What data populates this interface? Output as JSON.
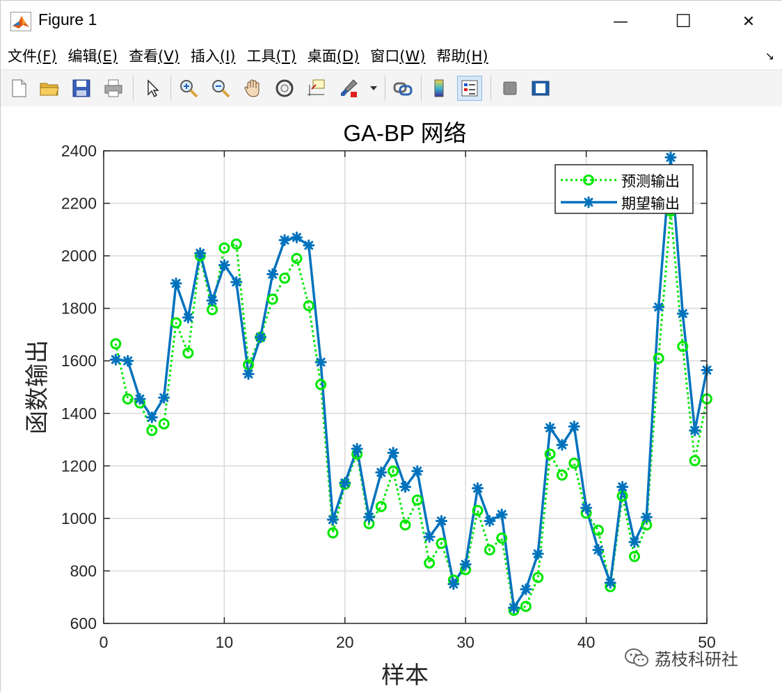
{
  "window": {
    "title": "Figure 1",
    "minimize_glyph": "—",
    "maximize_glyph": "☐",
    "close_glyph": "✕"
  },
  "menu": [
    {
      "label": "文件",
      "mnemonic": "(F)"
    },
    {
      "label": "编辑",
      "mnemonic": "(E)"
    },
    {
      "label": "查看",
      "mnemonic": "(V)"
    },
    {
      "label": "插入",
      "mnemonic": "(I)"
    },
    {
      "label": "工具",
      "mnemonic": "(T)"
    },
    {
      "label": "桌面",
      "mnemonic": "(D)"
    },
    {
      "label": "窗口",
      "mnemonic": "(W)"
    },
    {
      "label": "帮助",
      "mnemonic": "(H)"
    }
  ],
  "toolbar_icons": [
    "new-file-icon",
    "open-folder-icon",
    "save-icon",
    "print-icon",
    "pointer-icon",
    "zoom-in-icon",
    "zoom-out-icon",
    "pan-hand-icon",
    "rotate-3d-icon",
    "data-cursor-icon",
    "brush-icon",
    "link-plot-icon",
    "colorbar-icon",
    "legend-icon",
    "hide-plot-tools-icon",
    "show-plot-tools-icon"
  ],
  "watermark": "荔枝科研社",
  "colors": {
    "predicted": "#00e600",
    "expected": "#0072bd",
    "grid": "#d9d9d9"
  },
  "chart_data": {
    "type": "line",
    "title": "GA-BP 网络",
    "xlabel": "样本",
    "ylabel": "函数输出",
    "xlim": [
      0,
      50
    ],
    "ylim": [
      600,
      2400
    ],
    "xticks": [
      0,
      10,
      20,
      30,
      40,
      50
    ],
    "yticks": [
      600,
      800,
      1000,
      1200,
      1400,
      1600,
      1800,
      2000,
      2200,
      2400
    ],
    "grid": true,
    "legend_position": "top-right",
    "x": [
      1,
      2,
      3,
      4,
      5,
      6,
      7,
      8,
      9,
      10,
      11,
      12,
      13,
      14,
      15,
      16,
      17,
      18,
      19,
      20,
      21,
      22,
      23,
      24,
      25,
      26,
      27,
      28,
      29,
      30,
      31,
      32,
      33,
      34,
      35,
      36,
      37,
      38,
      39,
      40,
      41,
      42,
      43,
      44,
      45,
      46,
      47,
      48,
      49,
      50
    ],
    "series": [
      {
        "name": "预测输出",
        "style": "dotted-circle",
        "values": [
          1665,
          1455,
          1440,
          1335,
          1360,
          1745,
          1630,
          2000,
          1795,
          2030,
          2045,
          1585,
          1690,
          1835,
          1915,
          1990,
          1810,
          1510,
          945,
          1130,
          1245,
          980,
          1045,
          1180,
          975,
          1070,
          830,
          905,
          765,
          805,
          1030,
          880,
          925,
          650,
          665,
          775,
          1245,
          1165,
          1210,
          1020,
          955,
          740,
          1085,
          855,
          975,
          1610,
          2170,
          1655,
          1220,
          1455
        ]
      },
      {
        "name": "期望输出",
        "style": "solid-star",
        "values": [
          1605,
          1600,
          1455,
          1385,
          1460,
          1895,
          1765,
          2010,
          1830,
          1965,
          1900,
          1550,
          1690,
          1930,
          2060,
          2070,
          2040,
          1595,
          995,
          1135,
          1265,
          1005,
          1175,
          1250,
          1120,
          1180,
          930,
          990,
          750,
          825,
          1115,
          990,
          1015,
          660,
          730,
          865,
          1345,
          1280,
          1350,
          1040,
          880,
          755,
          1120,
          910,
          1005,
          1805,
          2375,
          1780,
          1335,
          1565
        ]
      }
    ]
  }
}
